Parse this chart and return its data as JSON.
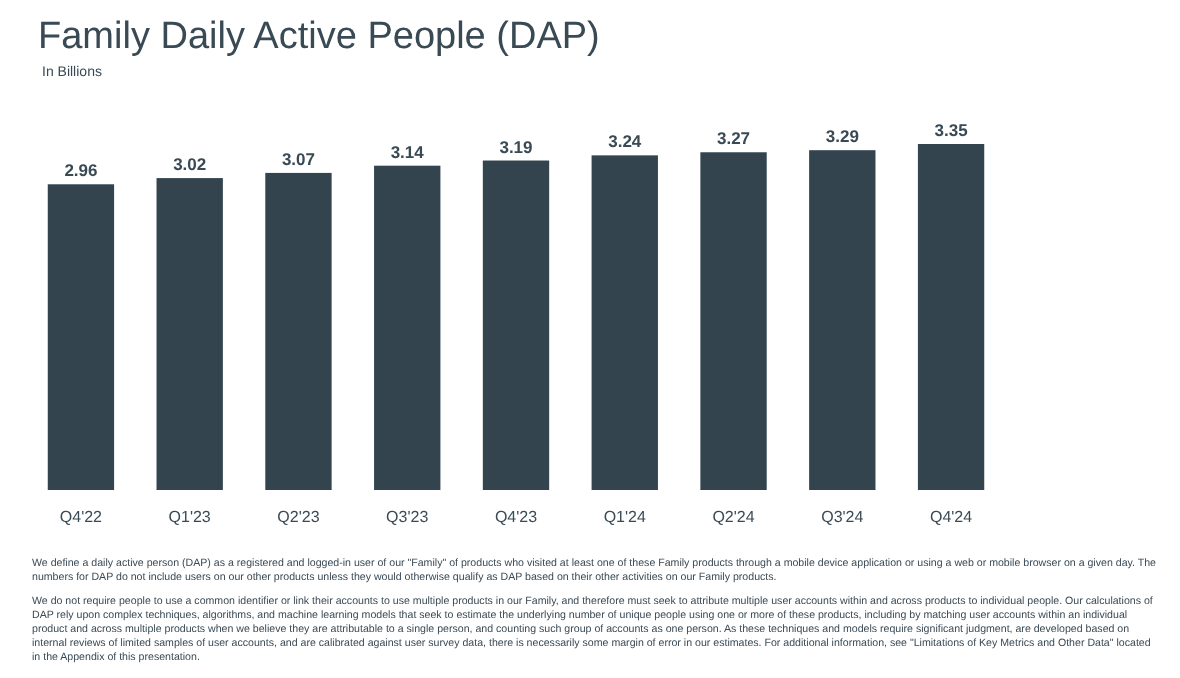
{
  "chart_data": {
    "type": "bar",
    "title": "Family Daily Active People (DAP)",
    "subtitle": "In Billions",
    "categories": [
      "Q4'22",
      "Q1'23",
      "Q2'23",
      "Q3'23",
      "Q4'23",
      "Q1'24",
      "Q2'24",
      "Q3'24",
      "Q4'24"
    ],
    "values": [
      2.96,
      3.02,
      3.07,
      3.14,
      3.19,
      3.24,
      3.27,
      3.29,
      3.35
    ],
    "color": "#33444f",
    "data_labels": true,
    "annotations": [
      "We define a daily active person (DAP) as a registered and logged-in user of our \"Family\" of products who visited at least one of these Family products through a mobile device application or using a web or mobile browser on a given day. The numbers for DAP do not include users on our other products unless they would otherwise qualify as DAP based on their other activities on our Family products.",
      "We do not require people to use a common identifier or link their accounts to use multiple products in our Family, and therefore must seek to attribute multiple user accounts within and across products to individual people. Our calculations of DAP rely upon complex techniques, algorithms, and machine learning models that seek to estimate the underlying number of unique people using one or more of these products, including by matching user accounts within an individual product and across multiple products when we believe they are attributable to a single person, and counting such group of accounts as one person. As these techniques and models require significant judgment, are developed based on internal reviews of limited samples of user accounts, and are calibrated against user survey data, there is necessarily some margin of error in our estimates. For additional information, see \"Limitations of Key Metrics and Other Data\" located in the Appendix of this presentation."
    ]
  }
}
